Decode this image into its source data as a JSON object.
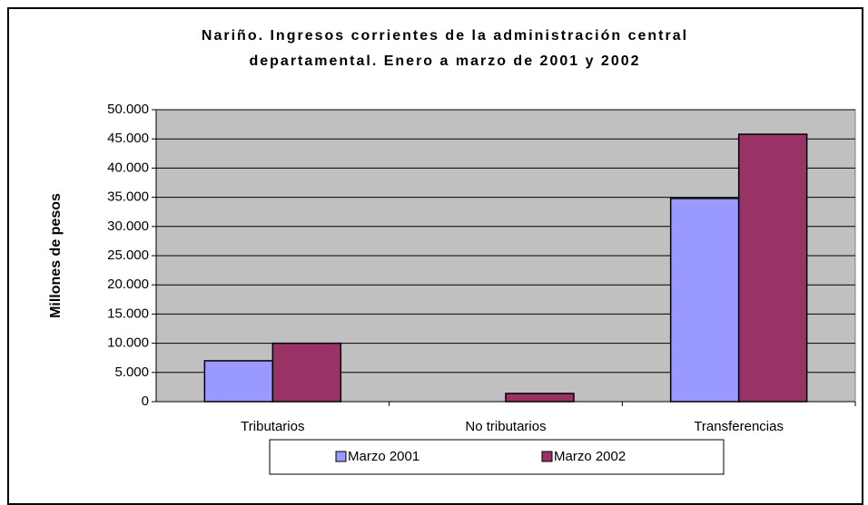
{
  "chart_data": {
    "type": "bar",
    "title": [
      "Nariño. Ingresos corrientes de la administración central",
      "departamental. Enero a marzo de 2001 y 2002"
    ],
    "y_label": "Millones de pesos",
    "categories": [
      "Tributarios",
      "No tributarios",
      "Transferencias"
    ],
    "series": [
      {
        "name": "Marzo 2001",
        "color": "#9999ff",
        "values": [
          7000,
          0,
          34800
        ]
      },
      {
        "name": "Marzo 2002",
        "color": "#993366",
        "values": [
          10000,
          1400,
          45800
        ]
      }
    ],
    "ylim": [
      0,
      50000
    ],
    "yticks": [
      0,
      {
        "value": 5000,
        "label": "5.000"
      },
      {
        "value": 10000,
        "label": "10.000"
      },
      {
        "value": 15000,
        "label": "15.000"
      },
      {
        "value": 20000,
        "label": "20.000"
      },
      {
        "value": 25000,
        "label": "25.000"
      },
      {
        "value": 30000,
        "label": "30.000"
      },
      {
        "value": 35000,
        "label": "35.000"
      },
      {
        "value": 40000,
        "label": "40.000"
      },
      {
        "value": 45000,
        "label": "45.000"
      },
      {
        "value": 50000,
        "label": "50.000"
      }
    ],
    "grid": true,
    "legend": "bottom"
  }
}
